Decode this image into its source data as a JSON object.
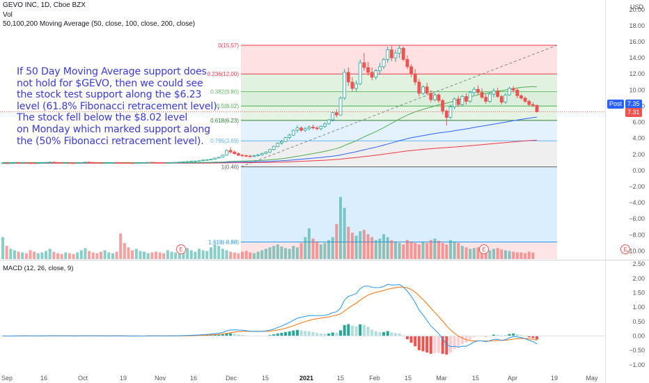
{
  "header": {
    "title": "GEVO INC, 1D, Cboe BZX",
    "vol_label": "Vol",
    "ma_label": "50,100,200 Moving Average (50, close, 100, close, 200, close)",
    "currency": "USD"
  },
  "annotation": {
    "lines": [
      "If 50 Day Moving Average support does",
      "not hold for $GEVO, then we could see",
      "the stock test support along the $6.23",
      "level (61.8% Fibonacci retracement level).",
      "The stock fell below the $8.02 level",
      "on Monday which marked support along",
      "the (50% Fibonacci retracement level)."
    ]
  },
  "price_tags": {
    "post_label": "Post",
    "post_value": "7.35",
    "last_value": "7.31"
  },
  "colors": {
    "up": "#26a69a",
    "down": "#ef5350",
    "ma50": "#4caf50",
    "ma100": "#2962ff",
    "ma200": "#f23645",
    "macd": "#2196f3",
    "signal": "#ff6d00",
    "annotation": "#3a3ad8"
  },
  "chart_data": [
    {
      "type": "candlestick",
      "title": "GEVO INC, 1D, Cboe BZX",
      "y_axis_ticks": [
        "20.00",
        "18.00",
        "16.00",
        "14.00",
        "12.00",
        "10.00",
        "8.00",
        "6.00",
        "4.00",
        "2.00",
        "0.00",
        "-2.00",
        "-4.00",
        "-6.00",
        "-8.00",
        "-10.00"
      ],
      "x_axis_ticks": [
        "Sep",
        "16",
        "Oct",
        "19",
        "Nov",
        "16",
        "Dec",
        "15",
        "2021",
        "15",
        "Feb",
        "15",
        "Mar",
        "15",
        "Apr",
        "19",
        "May"
      ],
      "ylim": [
        -11,
        20.5
      ],
      "fibonacci": [
        {
          "label": "0(15.57)",
          "value": 15.57
        },
        {
          "label": "0.236(12.00)",
          "value": 12.0
        },
        {
          "label": "0.382(9.80)",
          "value": 9.8
        },
        {
          "label": "0.5(8.02)",
          "value": 8.02
        },
        {
          "label": "0.618(6.23)",
          "value": 6.23
        },
        {
          "label": "0.786(3.69)",
          "value": 3.69
        },
        {
          "label": "1(0.46)",
          "value": 0.46
        },
        {
          "label": "1.618(-8.88)",
          "value": -8.88
        }
      ],
      "earnings_markers": [
        "E",
        "E",
        "E"
      ],
      "current_price": 7.31,
      "post_price": 7.35,
      "candles_approx": [
        [
          0.9,
          1.0,
          0.85,
          0.95
        ],
        [
          0.95,
          1.0,
          0.9,
          0.92
        ],
        [
          0.92,
          0.98,
          0.88,
          0.95
        ],
        [
          0.95,
          1.05,
          0.92,
          1.0
        ],
        [
          1.0,
          1.05,
          0.95,
          0.97
        ],
        [
          0.97,
          1.02,
          0.94,
          0.98
        ],
        [
          0.98,
          1.03,
          0.95,
          0.96
        ],
        [
          0.96,
          1.0,
          0.92,
          0.95
        ],
        [
          0.95,
          1.0,
          0.9,
          0.93
        ],
        [
          0.93,
          0.98,
          0.9,
          0.95
        ],
        [
          0.95,
          1.0,
          0.92,
          0.97
        ],
        [
          0.97,
          1.05,
          0.95,
          1.02
        ],
        [
          1.02,
          1.1,
          1.0,
          1.05
        ],
        [
          1.05,
          1.08,
          0.98,
          1.0
        ],
        [
          1.0,
          1.04,
          0.96,
          0.98
        ],
        [
          0.98,
          1.02,
          0.94,
          0.96
        ],
        [
          0.96,
          1.0,
          0.93,
          0.97
        ],
        [
          0.97,
          1.0,
          0.94,
          0.95
        ],
        [
          0.95,
          0.99,
          0.92,
          0.94
        ],
        [
          0.94,
          0.98,
          0.91,
          0.96
        ],
        [
          0.96,
          1.02,
          0.94,
          1.0
        ],
        [
          1.0,
          1.08,
          0.98,
          1.05
        ],
        [
          1.05,
          1.1,
          1.0,
          1.02
        ],
        [
          1.02,
          1.05,
          0.97,
          0.99
        ],
        [
          0.99,
          1.03,
          0.95,
          0.97
        ],
        [
          0.97,
          1.0,
          0.93,
          0.95
        ],
        [
          0.95,
          0.98,
          0.92,
          0.96
        ],
        [
          0.96,
          1.0,
          0.94,
          0.98
        ],
        [
          0.98,
          1.03,
          0.96,
          1.0
        ],
        [
          1.0,
          1.04,
          0.97,
          0.98
        ],
        [
          0.98,
          1.02,
          0.95,
          0.97
        ],
        [
          0.97,
          1.0,
          0.94,
          0.96
        ],
        [
          0.96,
          0.99,
          0.93,
          0.95
        ],
        [
          0.95,
          0.98,
          0.92,
          0.94
        ],
        [
          0.94,
          0.98,
          0.91,
          0.96
        ],
        [
          0.96,
          1.0,
          0.94,
          0.98
        ],
        [
          0.98,
          1.02,
          0.96,
          1.0
        ],
        [
          1.0,
          1.05,
          0.98,
          1.03
        ],
        [
          1.03,
          1.06,
          0.99,
          1.01
        ],
        [
          1.01,
          1.04,
          0.97,
          0.99
        ],
        [
          0.99,
          1.02,
          0.96,
          0.98
        ],
        [
          0.98,
          1.01,
          0.95,
          0.97
        ],
        [
          0.97,
          1.0,
          0.94,
          0.99
        ],
        [
          0.99,
          1.03,
          0.97,
          1.01
        ],
        [
          1.01,
          1.05,
          0.99,
          1.03
        ],
        [
          1.03,
          1.08,
          1.0,
          1.06
        ],
        [
          1.06,
          1.12,
          1.03,
          1.1
        ],
        [
          1.1,
          1.15,
          1.06,
          1.12
        ],
        [
          1.12,
          1.18,
          1.08,
          1.15
        ],
        [
          1.15,
          1.2,
          1.1,
          1.18
        ],
        [
          1.18,
          1.25,
          1.12,
          1.22
        ],
        [
          1.22,
          1.35,
          1.18,
          1.3
        ],
        [
          1.3,
          1.4,
          1.25,
          1.35
        ],
        [
          1.35,
          1.45,
          1.3,
          1.4
        ],
        [
          1.4,
          1.6,
          1.35,
          1.55
        ],
        [
          1.55,
          1.7,
          1.5,
          1.65
        ],
        [
          1.65,
          2.0,
          1.6,
          1.9
        ],
        [
          1.9,
          2.6,
          1.85,
          2.5
        ],
        [
          2.5,
          2.9,
          2.1,
          2.3
        ],
        [
          2.3,
          2.5,
          2.0,
          2.1
        ],
        [
          2.1,
          2.25,
          1.8,
          1.9
        ],
        [
          1.9,
          2.05,
          1.75,
          1.85
        ],
        [
          1.85,
          2.0,
          1.7,
          1.8
        ],
        [
          1.8,
          1.95,
          1.65,
          1.75
        ],
        [
          1.75,
          1.95,
          1.65,
          1.85
        ],
        [
          1.85,
          2.05,
          1.75,
          1.95
        ],
        [
          1.95,
          2.2,
          1.85,
          2.1
        ],
        [
          2.1,
          2.4,
          2.0,
          2.3
        ],
        [
          2.3,
          2.7,
          2.2,
          2.6
        ],
        [
          2.6,
          3.1,
          2.5,
          3.0
        ],
        [
          3.0,
          3.5,
          2.9,
          3.4
        ],
        [
          3.4,
          3.8,
          3.2,
          3.6
        ],
        [
          3.6,
          4.2,
          3.5,
          4.1
        ],
        [
          4.1,
          4.6,
          3.9,
          4.4
        ],
        [
          4.4,
          5.1,
          4.3,
          5.0
        ],
        [
          5.0,
          5.6,
          4.7,
          5.3
        ],
        [
          5.3,
          5.5,
          4.8,
          5.0
        ],
        [
          5.0,
          5.4,
          4.8,
          5.2
        ],
        [
          5.2,
          5.6,
          5.0,
          5.4
        ],
        [
          5.4,
          5.7,
          5.1,
          5.3
        ],
        [
          5.3,
          5.5,
          5.0,
          5.2
        ],
        [
          5.2,
          5.6,
          5.0,
          5.5
        ],
        [
          5.5,
          6.0,
          5.3,
          5.8
        ],
        [
          5.8,
          6.4,
          5.7,
          6.3
        ],
        [
          6.3,
          7.3,
          6.1,
          7.2
        ],
        [
          7.2,
          7.6,
          6.6,
          6.9
        ],
        [
          6.9,
          9.2,
          6.8,
          9.0
        ],
        [
          9.0,
          12.6,
          8.8,
          12.2
        ],
        [
          12.2,
          12.8,
          10.5,
          11.0
        ],
        [
          11.0,
          11.6,
          9.8,
          10.2
        ],
        [
          10.2,
          11.2,
          9.8,
          10.8
        ],
        [
          10.8,
          13.8,
          10.6,
          13.4
        ],
        [
          13.4,
          14.6,
          12.4,
          12.8
        ],
        [
          12.8,
          13.5,
          11.8,
          12.2
        ],
        [
          12.2,
          12.8,
          11.2,
          11.6
        ],
        [
          11.6,
          12.6,
          11.3,
          12.4
        ],
        [
          12.4,
          13.4,
          11.9,
          12.9
        ],
        [
          12.9,
          14.0,
          12.6,
          13.8
        ],
        [
          13.8,
          15.4,
          13.4,
          15.0
        ],
        [
          15.0,
          15.5,
          13.6,
          14.0
        ],
        [
          14.0,
          15.0,
          13.5,
          14.6
        ],
        [
          14.6,
          15.57,
          14.0,
          15.2
        ],
        [
          15.2,
          15.4,
          13.6,
          13.8
        ],
        [
          13.8,
          14.3,
          12.6,
          12.9
        ],
        [
          12.9,
          13.2,
          11.6,
          12.0
        ],
        [
          12.0,
          12.6,
          10.6,
          11.0
        ],
        [
          11.0,
          11.4,
          9.2,
          9.6
        ],
        [
          9.6,
          10.6,
          9.4,
          10.4
        ],
        [
          10.4,
          10.9,
          9.4,
          9.6
        ],
        [
          9.6,
          10.0,
          8.5,
          8.8
        ],
        [
          8.8,
          9.6,
          8.6,
          9.4
        ],
        [
          9.4,
          9.6,
          8.4,
          8.7
        ],
        [
          8.7,
          8.9,
          7.0,
          7.4
        ],
        [
          7.4,
          7.6,
          5.6,
          6.6
        ],
        [
          6.6,
          8.2,
          6.4,
          7.9
        ],
        [
          7.9,
          9.1,
          7.6,
          8.9
        ],
        [
          8.9,
          9.3,
          7.9,
          8.2
        ],
        [
          8.2,
          9.4,
          8.0,
          9.2
        ],
        [
          9.2,
          9.6,
          8.2,
          8.6
        ],
        [
          8.6,
          9.9,
          8.4,
          9.7
        ],
        [
          9.7,
          10.4,
          9.4,
          10.1
        ],
        [
          10.1,
          10.6,
          9.4,
          9.7
        ],
        [
          9.7,
          10.2,
          8.9,
          9.1
        ],
        [
          9.1,
          9.5,
          8.3,
          8.6
        ],
        [
          8.6,
          9.7,
          8.4,
          9.5
        ],
        [
          9.5,
          10.2,
          9.1,
          9.9
        ],
        [
          9.9,
          10.3,
          9.0,
          9.2
        ],
        [
          9.2,
          9.4,
          8.2,
          8.5
        ],
        [
          8.5,
          9.6,
          8.3,
          9.4
        ],
        [
          9.4,
          10.4,
          9.3,
          10.2
        ],
        [
          10.2,
          10.5,
          9.7,
          10.0
        ],
        [
          10.0,
          10.2,
          9.0,
          9.3
        ],
        [
          9.3,
          9.5,
          8.8,
          9.0
        ],
        [
          9.0,
          9.2,
          8.4,
          8.6
        ],
        [
          8.6,
          8.8,
          8.0,
          8.2
        ],
        [
          8.2,
          8.5,
          7.9,
          8.1
        ],
        [
          8.1,
          8.2,
          7.2,
          7.31
        ]
      ],
      "volume_approx": [
        30,
        18,
        14,
        12,
        10,
        9,
        8,
        12,
        10,
        8,
        9,
        11,
        14,
        10,
        8,
        7,
        9,
        8,
        7,
        9,
        12,
        15,
        11,
        9,
        8,
        10,
        12,
        9,
        8,
        10,
        35,
        22,
        16,
        12,
        14,
        11,
        10,
        8,
        9,
        10,
        9,
        8,
        12,
        10,
        9,
        11,
        13,
        15,
        12,
        10,
        14,
        12,
        11,
        16,
        20,
        18,
        14,
        12,
        10,
        9,
        8,
        10,
        11,
        9,
        8,
        10,
        12,
        14,
        16,
        18,
        20,
        17,
        15,
        14,
        18,
        16,
        22,
        30,
        42,
        28,
        24,
        20,
        22,
        26,
        30,
        48,
        85,
        70,
        44,
        36,
        32,
        38,
        40,
        34,
        30,
        26,
        28,
        34,
        30,
        26,
        24,
        22,
        20,
        26,
        24,
        22,
        20,
        24,
        22,
        26,
        28,
        25,
        22,
        20,
        26,
        24,
        22,
        18,
        16,
        14,
        15,
        16,
        14,
        13,
        12,
        14,
        15,
        13,
        12,
        11,
        10,
        9,
        9,
        8,
        10,
        9
      ],
      "moving_averages": [
        {
          "name": "MA 50",
          "color": "#4caf50"
        },
        {
          "name": "MA 100",
          "color": "#2962ff"
        },
        {
          "name": "MA 200",
          "color": "#f23645"
        }
      ]
    },
    {
      "type": "line",
      "title": "MACD (12, 26, close, 9)",
      "y_axis_ticks": [
        "2.50",
        "2.00",
        "1.50",
        "1.00",
        "0.50",
        "0.00",
        "-0.50",
        "-1.00"
      ],
      "ylim": [
        -1.15,
        2.6
      ],
      "series": [
        {
          "name": "MACD",
          "color": "#2196f3"
        },
        {
          "name": "Signal",
          "color": "#ff6d00"
        },
        {
          "name": "Histogram",
          "color": "#26a69a"
        }
      ]
    }
  ]
}
